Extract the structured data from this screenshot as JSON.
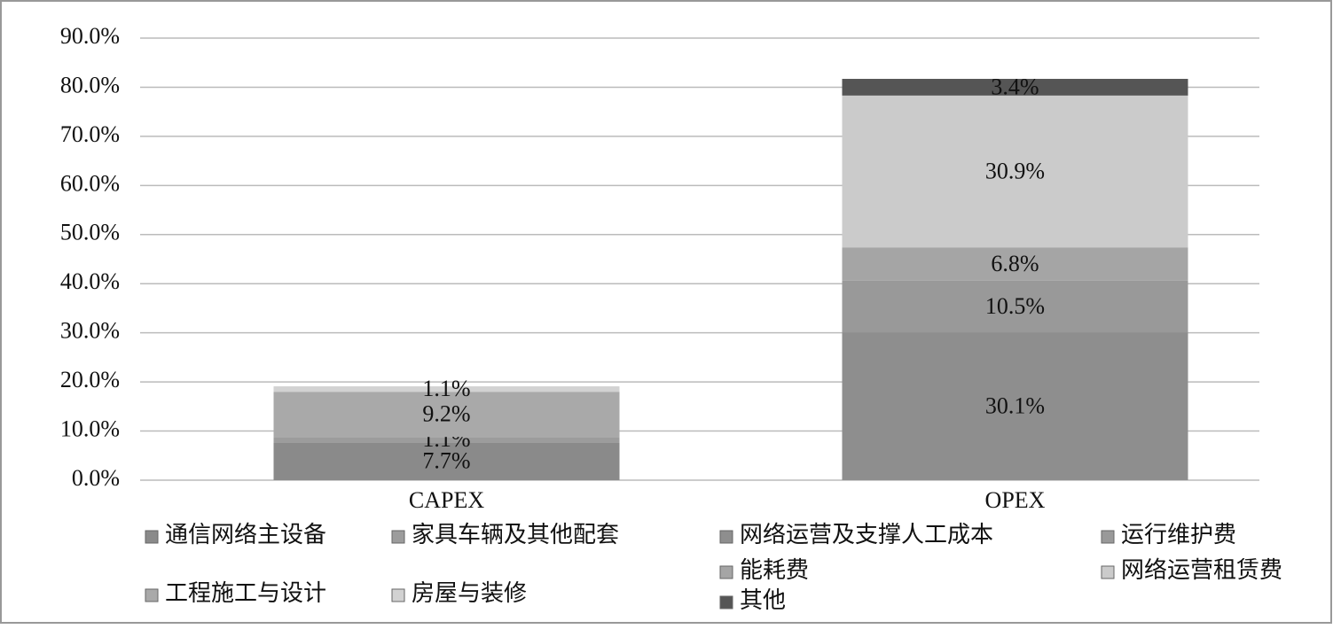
{
  "chart_data": {
    "type": "stacked_bar",
    "categories": [
      "CAPEX",
      "OPEX"
    ],
    "ylim": [
      0,
      90
    ],
    "yticks": [
      {
        "value": 0,
        "label": "0.0%"
      },
      {
        "value": 10,
        "label": "10.0%"
      },
      {
        "value": 20,
        "label": "20.0%"
      },
      {
        "value": 30,
        "label": "30.0%"
      },
      {
        "value": 40,
        "label": "40.0%"
      },
      {
        "value": 50,
        "label": "50.0%"
      },
      {
        "value": 60,
        "label": "60.0%"
      },
      {
        "value": 70,
        "label": "70.0%"
      },
      {
        "value": 80,
        "label": "80.0%"
      },
      {
        "value": 90,
        "label": "90.0%"
      }
    ],
    "grid": true,
    "series": [
      {
        "name": "通信网络主设备",
        "color": "#8a8a8a",
        "values": [
          7.7,
          null
        ],
        "value_labels": [
          "7.7%",
          null
        ]
      },
      {
        "name": "家具车辆及其他配套",
        "color": "#9c9c9c",
        "values": [
          1.1,
          null
        ],
        "value_labels": [
          "1.1%",
          null
        ]
      },
      {
        "name": "工程施工与设计",
        "color": "#a9a9a9",
        "values": [
          9.2,
          null
        ],
        "value_labels": [
          "9.2%",
          null
        ]
      },
      {
        "name": "房屋与装修",
        "color": "#d2d2d2",
        "values": [
          1.1,
          null
        ],
        "value_labels": [
          "1.1%",
          null
        ]
      },
      {
        "name": "网络运营及支撑人工成本",
        "color": "#8e8e8e",
        "values": [
          null,
          30.1
        ],
        "value_labels": [
          null,
          "30.1%"
        ]
      },
      {
        "name": "运行维护费",
        "color": "#999999",
        "values": [
          null,
          10.5
        ],
        "value_labels": [
          null,
          "10.5%"
        ]
      },
      {
        "name": "能耗费",
        "color": "#a5a5a5",
        "values": [
          null,
          6.8
        ],
        "value_labels": [
          null,
          "6.8%"
        ]
      },
      {
        "name": "网络运营租赁费",
        "color": "#cbcbcb",
        "values": [
          null,
          30.9
        ],
        "value_labels": [
          null,
          "30.9%"
        ]
      },
      {
        "name": "其他",
        "color": "#555555",
        "values": [
          null,
          3.4
        ],
        "value_labels": [
          null,
          "3.4%"
        ]
      }
    ]
  }
}
